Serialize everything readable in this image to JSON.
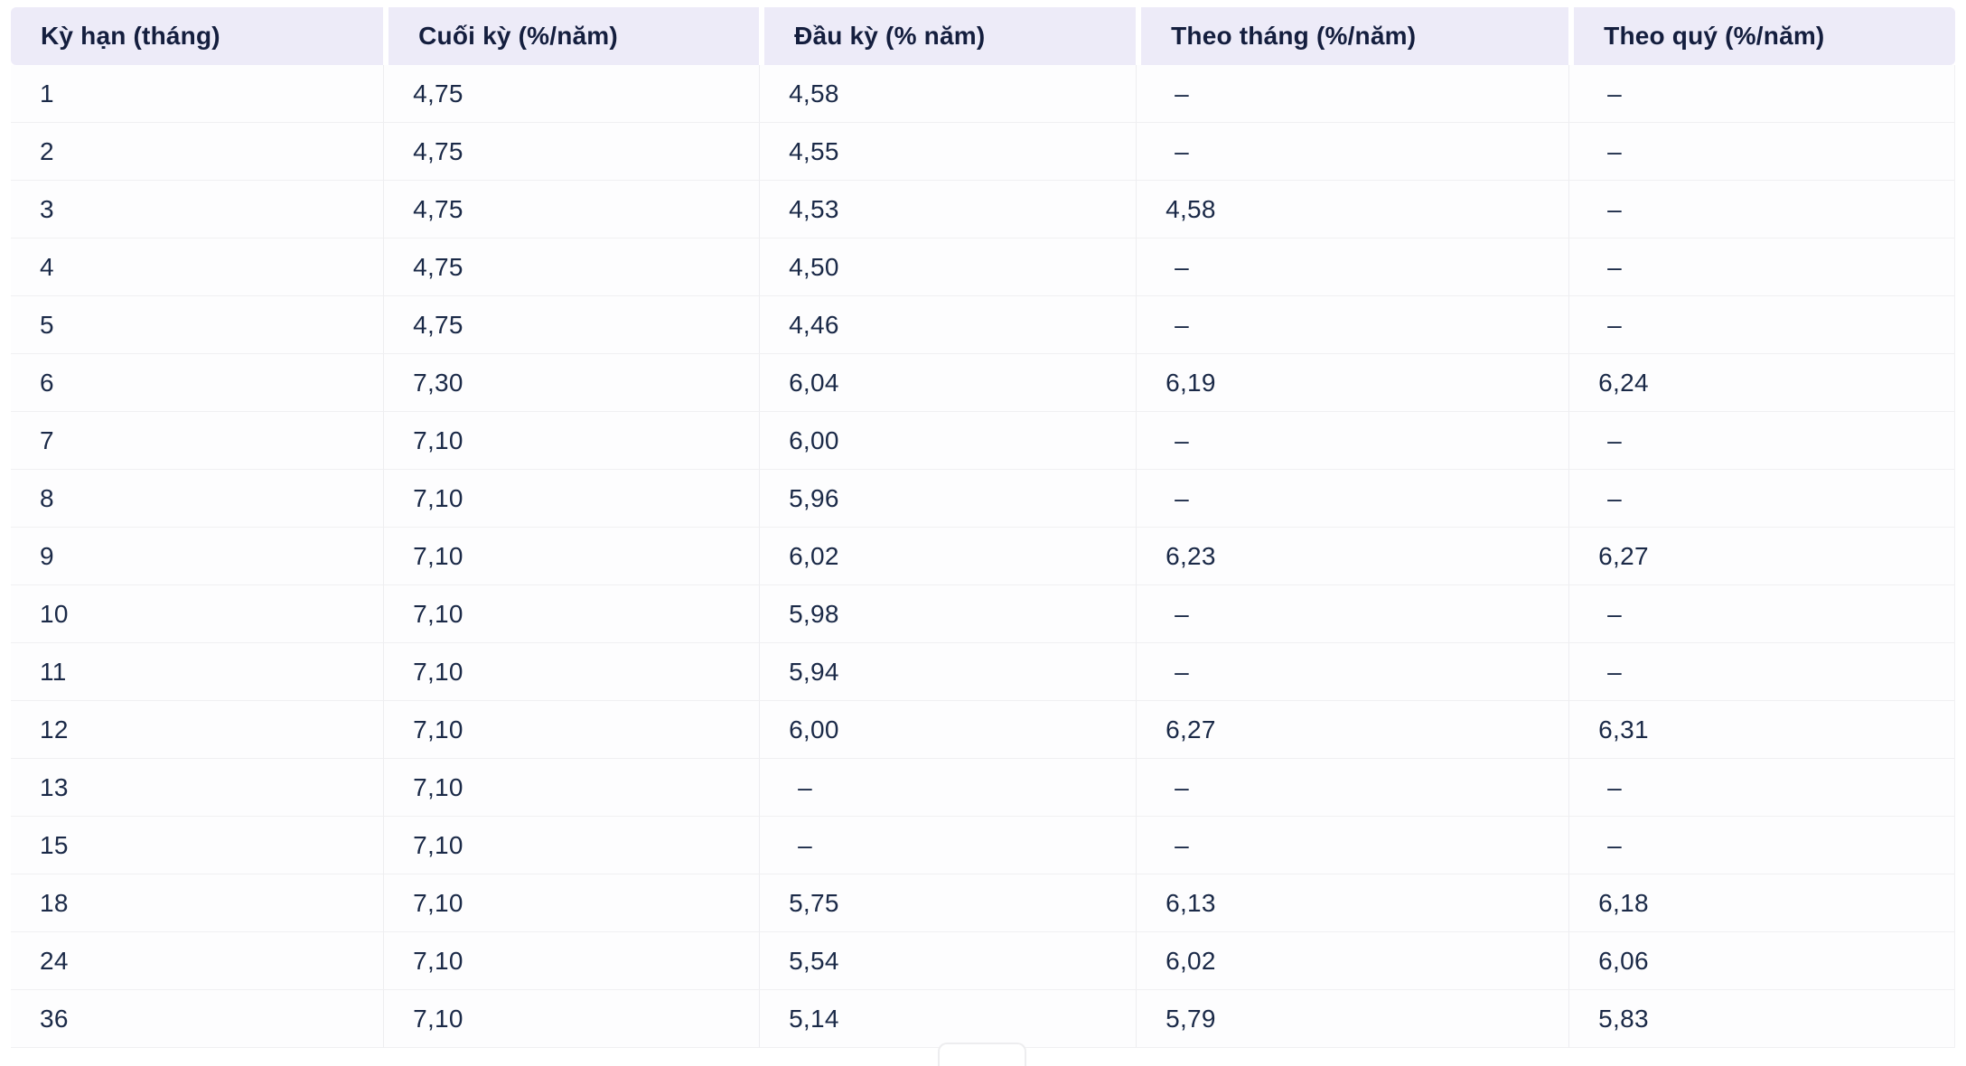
{
  "chart_data": {
    "type": "table",
    "title": "",
    "columns": [
      "Kỳ hạn (tháng)",
      "Cuối kỳ (%/năm)",
      "Đầu kỳ (% năm)",
      "Theo tháng (%/năm)",
      "Theo quý (%/năm)"
    ],
    "empty_marker": "–",
    "rows": [
      [
        "1",
        "4,75",
        "4,58",
        "–",
        "–"
      ],
      [
        "2",
        "4,75",
        "4,55",
        "–",
        "–"
      ],
      [
        "3",
        "4,75",
        "4,53",
        "4,58",
        "–"
      ],
      [
        "4",
        "4,75",
        "4,50",
        "–",
        "–"
      ],
      [
        "5",
        "4,75",
        "4,46",
        "–",
        "–"
      ],
      [
        "6",
        "7,30",
        "6,04",
        "6,19",
        "6,24"
      ],
      [
        "7",
        "7,10",
        "6,00",
        "–",
        "–"
      ],
      [
        "8",
        "7,10",
        "5,96",
        "–",
        "–"
      ],
      [
        "9",
        "7,10",
        "6,02",
        "6,23",
        "6,27"
      ],
      [
        "10",
        "7,10",
        "5,98",
        "–",
        "–"
      ],
      [
        "11",
        "7,10",
        "5,94",
        "–",
        "–"
      ],
      [
        "12",
        "7,10",
        "6,00",
        "6,27",
        "6,31"
      ],
      [
        "13",
        "7,10",
        "–",
        "–",
        "–"
      ],
      [
        "15",
        "7,10",
        "–",
        "–",
        "–"
      ],
      [
        "18",
        "7,10",
        "5,75",
        "6,13",
        "6,18"
      ],
      [
        "24",
        "7,10",
        "5,54",
        "6,02",
        "6,06"
      ],
      [
        "36",
        "7,10",
        "5,14",
        "5,79",
        "5,83"
      ]
    ],
    "layout": {
      "legend": "none",
      "grid": "row-and-column-separators"
    },
    "colors": {
      "header_bg": "#edebf8",
      "header_text": "#141e3e",
      "cell_text": "#1a2947",
      "row_separator": "#f0f0f2",
      "column_separator": "#ededf0",
      "background": "#ffffff"
    }
  }
}
